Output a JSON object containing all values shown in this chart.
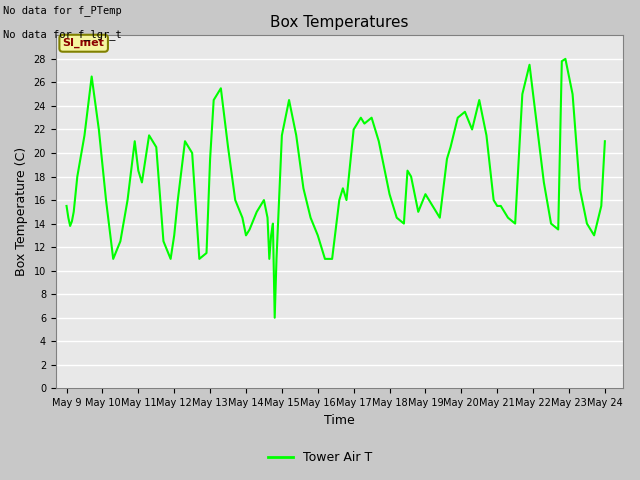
{
  "title": "Box Temperatures",
  "xlabel": "Time",
  "ylabel": "Box Temperature (C)",
  "legend_label": "Tower Air T",
  "annotations_line1": "No data for f_PTemp",
  "annotations_line2": "No data for f_lgr_t",
  "annotation_box_label": "SI_met",
  "line_color": "#00ff00",
  "ylim": [
    0,
    30
  ],
  "yticks": [
    0,
    2,
    4,
    6,
    8,
    10,
    12,
    14,
    16,
    18,
    20,
    22,
    24,
    26,
    28
  ],
  "x_labels": [
    "May 9",
    "May 10",
    "May 11",
    "May 12",
    "May 13",
    "May 14",
    "May 15",
    "May 16",
    "May 17",
    "May 18",
    "May 19",
    "May 20",
    "May 21",
    "May 22",
    "May 23",
    "May 24"
  ],
  "x_values": [
    0,
    1,
    2,
    3,
    4,
    5,
    6,
    7,
    8,
    9,
    10,
    11,
    12,
    13,
    14,
    15
  ],
  "tower_air_t": [
    15.5,
    14.5,
    13.8,
    14.2,
    15.0,
    16.5,
    18.0,
    21.5,
    26.5,
    22.0,
    16.0,
    11.0,
    12.5,
    16.0,
    21.0,
    18.5,
    17.5,
    21.5,
    20.5,
    12.5,
    11.0,
    13.0,
    16.0,
    21.0,
    20.0,
    11.0,
    11.5,
    19.5,
    24.5,
    25.5,
    20.5,
    16.0,
    14.5,
    13.0,
    13.5,
    15.0,
    16.0,
    14.5,
    11.0,
    13.0,
    14.0,
    6.0,
    11.0,
    14.5,
    21.5,
    24.5,
    21.5,
    17.0,
    14.5,
    13.0,
    11.0,
    11.0,
    13.5,
    16.0,
    17.0,
    16.0,
    22.0,
    23.0,
    22.5,
    23.0,
    21.0,
    16.5,
    14.5,
    14.0,
    18.5,
    18.0,
    15.0,
    16.5,
    15.5,
    14.5,
    19.5,
    20.5,
    23.0,
    23.5,
    22.0,
    24.5,
    21.5,
    16.0,
    15.5,
    15.5,
    14.5,
    14.0,
    25.0,
    27.5,
    22.5,
    17.5,
    14.0,
    13.5,
    27.8,
    28.0,
    25.0,
    17.0,
    14.0,
    13.0,
    15.5,
    21.0
  ],
  "tower_x": [
    0.0,
    0.05,
    0.1,
    0.15,
    0.2,
    0.25,
    0.3,
    0.5,
    0.7,
    0.9,
    1.1,
    1.3,
    1.5,
    1.7,
    1.9,
    2.0,
    2.1,
    2.3,
    2.5,
    2.7,
    2.9,
    3.0,
    3.1,
    3.3,
    3.5,
    3.7,
    3.9,
    4.0,
    4.1,
    4.3,
    4.5,
    4.7,
    4.9,
    5.0,
    5.1,
    5.3,
    5.5,
    5.6,
    5.65,
    5.7,
    5.75,
    5.8,
    5.85,
    5.9,
    6.0,
    6.2,
    6.4,
    6.6,
    6.8,
    7.0,
    7.2,
    7.4,
    7.5,
    7.6,
    7.7,
    7.8,
    8.0,
    8.2,
    8.3,
    8.5,
    8.7,
    9.0,
    9.2,
    9.4,
    9.5,
    9.6,
    9.8,
    10.0,
    10.2,
    10.4,
    10.6,
    10.7,
    10.9,
    11.1,
    11.3,
    11.5,
    11.7,
    11.9,
    12.0,
    12.1,
    12.3,
    12.5,
    12.7,
    12.9,
    13.1,
    13.3,
    13.5,
    13.7,
    13.8,
    13.9,
    14.1,
    14.3,
    14.5,
    14.7,
    14.9,
    15.0
  ]
}
